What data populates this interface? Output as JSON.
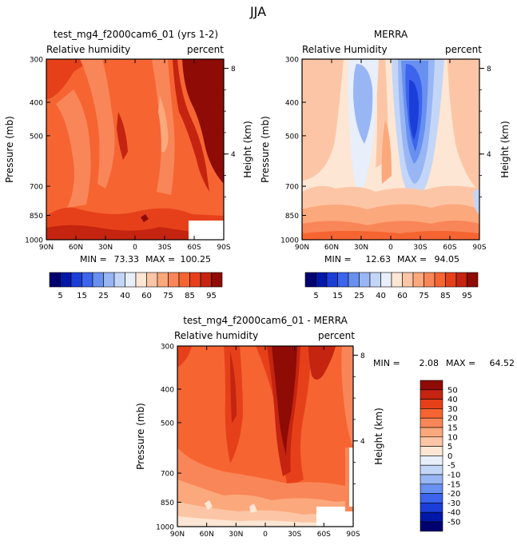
{
  "figure_title": "JJA",
  "panels": [
    {
      "title": "test_mg4_f2000cam6_01 (yrs 1-2)",
      "left_label": "Relative humidity",
      "right_label": "percent",
      "ylabel": "Pressure (mb)",
      "y2label": "Height (km)",
      "min_label": "MIN =",
      "min_value": "73.33",
      "max_label": "MAX =",
      "max_value": "100.25"
    },
    {
      "title": "MERRA",
      "left_label": "Relative Humidity",
      "right_label": "percent",
      "ylabel": "Pressure (mb)",
      "y2label": "Height (km)",
      "min_label": "MIN =",
      "min_value": "12.63",
      "max_label": "MAX =",
      "max_value": "94.05"
    },
    {
      "title": "test_mg4_f2000cam6_01 - MERRA",
      "left_label": "Relative humidity",
      "right_label": "percent",
      "ylabel": "Pressure (mb)",
      "y2label": "Height (km)",
      "min_label": "MIN =",
      "min_value": "2.08",
      "max_label": "MAX =",
      "max_value": "64.52"
    }
  ],
  "x_ticks": [
    "90N",
    "60N",
    "30N",
    "0",
    "30S",
    "60S",
    "90S"
  ],
  "y_ticks": [
    "300",
    "400",
    "500",
    "700",
    "850",
    "1000"
  ],
  "y2_ticks": [
    "8",
    "4"
  ],
  "colorbar_abs": {
    "labels": [
      "5",
      "15",
      "25",
      "40",
      "60",
      "75",
      "85",
      "95"
    ],
    "colors": [
      "#000070",
      "#0018a8",
      "#1c3ed8",
      "#3c64ec",
      "#6890f0",
      "#98b6f4",
      "#c4d6f8",
      "#e8eefa",
      "#fde6d4",
      "#fcc6a6",
      "#fba87c",
      "#f98658",
      "#f66432",
      "#e6401a",
      "#c42410",
      "#8e0b06"
    ]
  },
  "colorbar_diff": {
    "labels": [
      "50",
      "40",
      "30",
      "20",
      "15",
      "10",
      "5",
      "0",
      "-5",
      "-10",
      "-15",
      "-20",
      "-30",
      "-40",
      "-50"
    ],
    "colors": [
      "#8e0b06",
      "#c42410",
      "#e6401a",
      "#f66432",
      "#f98658",
      "#fba87c",
      "#fcc6a6",
      "#fde6d4",
      "#e8eefa",
      "#c4d6f8",
      "#98b6f4",
      "#6890f0",
      "#3c64ec",
      "#1c3ed8",
      "#0018a8",
      "#000070"
    ]
  },
  "chart_data": [
    {
      "type": "heatmap",
      "title": "test_mg4_f2000cam6_01 (yrs 1-2)",
      "xlabel": "",
      "ylabel": "Pressure (mb)",
      "y2label": "Height (km)",
      "x": [
        "90N",
        "60N",
        "30N",
        "0",
        "30S",
        "60S",
        "90S"
      ],
      "y": [
        300,
        400,
        500,
        700,
        850,
        1000
      ],
      "values": [
        [
          90,
          85,
          80,
          75,
          80,
          95,
          95
        ],
        [
          85,
          80,
          75,
          75,
          75,
          90,
          95
        ],
        [
          80,
          75,
          75,
          80,
          75,
          85,
          95
        ],
        [
          80,
          80,
          80,
          85,
          80,
          85,
          90
        ],
        [
          85,
          85,
          80,
          85,
          80,
          85,
          85
        ],
        [
          90,
          90,
          85,
          90,
          85,
          90,
          90
        ]
      ],
      "min": 73.33,
      "max": 100.25,
      "colorbar_levels": [
        5,
        10,
        15,
        20,
        25,
        30,
        40,
        50,
        60,
        65,
        75,
        80,
        85,
        90,
        95
      ]
    },
    {
      "type": "heatmap",
      "title": "MERRA",
      "xlabel": "",
      "ylabel": "Pressure (mb)",
      "y2label": "Height (km)",
      "x": [
        "90N",
        "60N",
        "30N",
        "0",
        "30S",
        "60S",
        "90S"
      ],
      "y": [
        300,
        400,
        500,
        700,
        850,
        1000
      ],
      "values": [
        [
          60,
          60,
          40,
          60,
          20,
          60,
          60
        ],
        [
          60,
          60,
          30,
          60,
          15,
          60,
          60
        ],
        [
          60,
          60,
          30,
          60,
          15,
          60,
          60
        ],
        [
          60,
          60,
          50,
          65,
          40,
          60,
          60
        ],
        [
          65,
          70,
          60,
          75,
          65,
          65,
          60
        ],
        [
          85,
          85,
          80,
          80,
          80,
          85,
          75
        ]
      ],
      "min": 12.63,
      "max": 94.05,
      "colorbar_levels": [
        5,
        10,
        15,
        20,
        25,
        30,
        40,
        50,
        60,
        65,
        75,
        80,
        85,
        90,
        95
      ]
    },
    {
      "type": "heatmap",
      "title": "test_mg4_f2000cam6_01 - MERRA",
      "xlabel": "",
      "ylabel": "Pressure (mb)",
      "y2label": "Height (km)",
      "x": [
        "90N",
        "60N",
        "30N",
        "0",
        "30S",
        "60S",
        "90S"
      ],
      "y": [
        300,
        400,
        500,
        700,
        850,
        1000
      ],
      "values": [
        [
          30,
          25,
          40,
          20,
          50,
          40,
          40
        ],
        [
          25,
          20,
          40,
          20,
          50,
          30,
          35
        ],
        [
          20,
          20,
          40,
          20,
          50,
          30,
          30
        ],
        [
          20,
          20,
          30,
          20,
          40,
          25,
          30
        ],
        [
          20,
          15,
          20,
          15,
          20,
          20,
          25
        ],
        [
          5,
          5,
          5,
          10,
          5,
          5,
          15
        ]
      ],
      "min": 2.08,
      "max": 64.52,
      "colorbar_levels": [
        -50,
        -40,
        -30,
        -20,
        -15,
        -10,
        -5,
        0,
        5,
        10,
        15,
        20,
        30,
        40,
        50
      ]
    }
  ]
}
